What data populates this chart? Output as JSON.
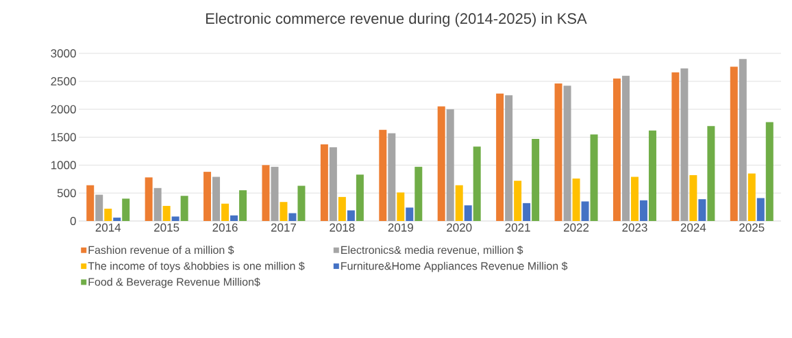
{
  "chart_data": {
    "type": "bar",
    "title": "Electronic commerce revenue during (2014-2025) in  KSA",
    "categories": [
      "2014",
      "2015",
      "2016",
      "2017",
      "2018",
      "2019",
      "2020",
      "2021",
      "2022",
      "2023",
      "2024",
      "2025"
    ],
    "series": [
      {
        "name": "Fashion revenue of a million $",
        "color": "#ed7d31",
        "values": [
          640,
          780,
          880,
          1000,
          1370,
          1630,
          2050,
          2280,
          2460,
          2550,
          2660,
          2760
        ]
      },
      {
        "name": "Electronics& media revenue, million $",
        "color": "#a5a5a5",
        "values": [
          470,
          590,
          790,
          970,
          1320,
          1570,
          2000,
          2250,
          2420,
          2600,
          2730,
          2900
        ]
      },
      {
        "name": "The income of toys &hobbies is one million $",
        "color": "#ffc000",
        "values": [
          220,
          270,
          310,
          340,
          430,
          510,
          640,
          720,
          760,
          790,
          820,
          850
        ]
      },
      {
        "name": "Furniture&Home Appliances Revenue Million $",
        "color": "#4472c4",
        "values": [
          60,
          80,
          100,
          140,
          190,
          240,
          280,
          320,
          350,
          370,
          390,
          410
        ]
      },
      {
        "name": "Food & Beverage Revenue Million$",
        "color": "#70ad47",
        "values": [
          400,
          450,
          550,
          630,
          830,
          970,
          1330,
          1470,
          1550,
          1620,
          1700,
          1770
        ]
      }
    ],
    "ylim": [
      0,
      3000
    ],
    "yticks": [
      0,
      500,
      1000,
      1500,
      2000,
      2500,
      3000
    ],
    "grid": "y",
    "legend": "bottom"
  }
}
